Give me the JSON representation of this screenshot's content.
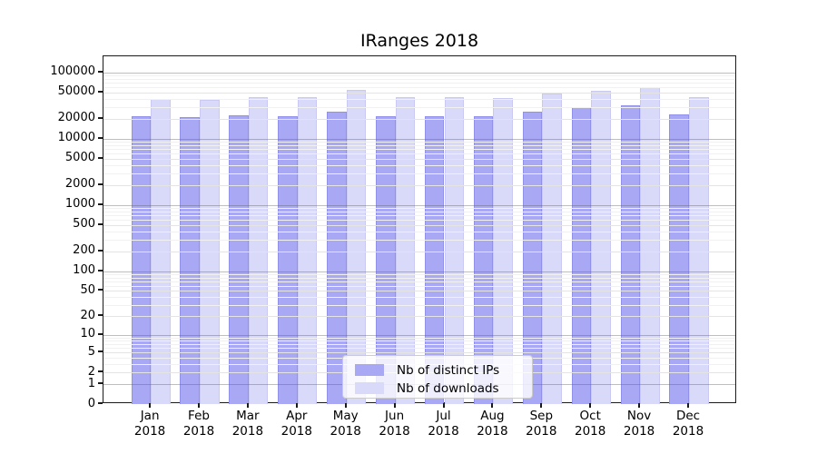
{
  "chart_data": {
    "type": "bar",
    "title": "IRanges 2018",
    "months": [
      "Jan",
      "Feb",
      "Mar",
      "Apr",
      "May",
      "Jun",
      "Jul",
      "Aug",
      "Sep",
      "Oct",
      "Nov",
      "Dec"
    ],
    "year_label": "2018",
    "series": [
      {
        "name": "Nb of distinct IPs",
        "color": "#a8a8f4",
        "edge_color": "#9191ea",
        "values": [
          22200,
          21500,
          22900,
          22200,
          26100,
          22200,
          21800,
          22000,
          25700,
          30000,
          31800,
          23200
        ]
      },
      {
        "name": "Nb of downloads",
        "color": "#d9d9f9",
        "edge_color": "#c9c9f2",
        "values": [
          40500,
          38900,
          43000,
          42700,
          55500,
          43000,
          42300,
          40800,
          47800,
          53200,
          60400,
          42500
        ]
      }
    ],
    "yticks": [
      0,
      1,
      2,
      5,
      10,
      20,
      50,
      100,
      200,
      500,
      1000,
      2000,
      5000,
      10000,
      20000,
      50000,
      100000
    ],
    "scale": "log1p",
    "ylim": [
      0,
      176000
    ],
    "grid": true,
    "legend_position": "lower center"
  }
}
